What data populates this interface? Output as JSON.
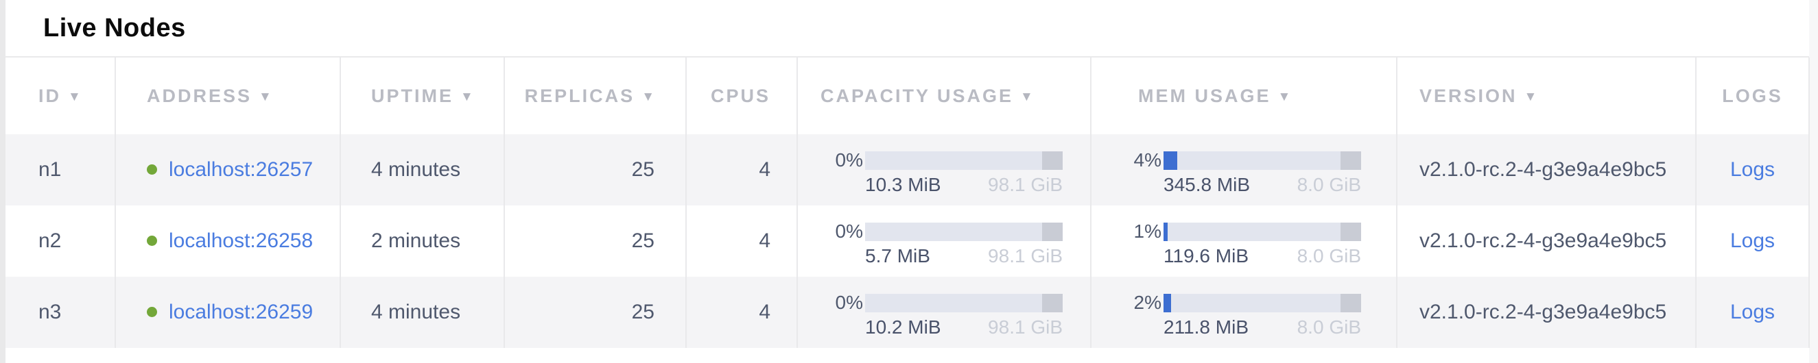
{
  "page": {
    "title": "Live Nodes"
  },
  "colors": {
    "link": "#4a7ce0",
    "live_dot": "#73a739",
    "bar_fill": "#3d6ed1",
    "bar_track": "#e2e5ee",
    "bar_cap": "#c9ccd5"
  },
  "table": {
    "sort_icon": "▼",
    "columns": {
      "id": "ID",
      "address": "ADDRESS",
      "uptime": "UPTIME",
      "replicas": "REPLICAS",
      "cpus": "CPUS",
      "capacity": "CAPACITY USAGE",
      "mem": "MEM USAGE",
      "version": "VERSION",
      "logs": "LOGS"
    },
    "rows": [
      {
        "id": "n1",
        "status": "live",
        "address": "localhost:26257",
        "uptime": "4 minutes",
        "replicas": "25",
        "cpus": "4",
        "capacity": {
          "percent": "0%",
          "used": "10.3 MiB",
          "total": "98.1 GiB",
          "fill_pct": 0
        },
        "memory": {
          "percent": "4%",
          "used": "345.8 MiB",
          "total": "8.0 GiB",
          "fill_pct": 4
        },
        "version": "v2.1.0-rc.2-4-g3e9a4e9bc5",
        "logs": "Logs"
      },
      {
        "id": "n2",
        "status": "live",
        "address": "localhost:26258",
        "uptime": "2 minutes",
        "replicas": "25",
        "cpus": "4",
        "capacity": {
          "percent": "0%",
          "used": "5.7 MiB",
          "total": "98.1 GiB",
          "fill_pct": 0
        },
        "memory": {
          "percent": "1%",
          "used": "119.6 MiB",
          "total": "8.0 GiB",
          "fill_pct": 1
        },
        "version": "v2.1.0-rc.2-4-g3e9a4e9bc5",
        "logs": "Logs"
      },
      {
        "id": "n3",
        "status": "live",
        "address": "localhost:26259",
        "uptime": "4 minutes",
        "replicas": "25",
        "cpus": "4",
        "capacity": {
          "percent": "0%",
          "used": "10.2 MiB",
          "total": "98.1 GiB",
          "fill_pct": 0
        },
        "memory": {
          "percent": "2%",
          "used": "211.8 MiB",
          "total": "8.0 GiB",
          "fill_pct": 2
        },
        "version": "v2.1.0-rc.2-4-g3e9a4e9bc5",
        "logs": "Logs"
      }
    ]
  }
}
